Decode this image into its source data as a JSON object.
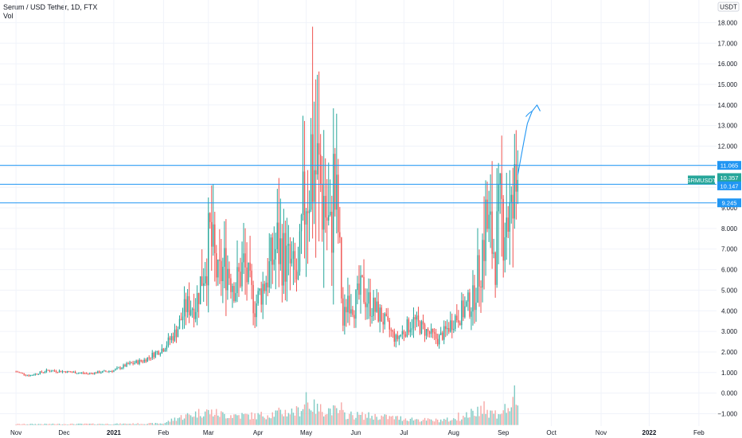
{
  "header": {
    "title": "Serum / USD Tether, 1D, FTX",
    "vol_label": "Vol"
  },
  "colors": {
    "up": "#26a69a",
    "down": "#ef5350",
    "up_vol": "#80cbc4",
    "down_vol": "#f7a9a7",
    "level_line": "#2196f3",
    "tag_blue": "#2196f3",
    "tag_green": "#26a69a"
  },
  "chart_data": {
    "type": "candlestick",
    "title": "Serum / USD Tether, 1D, FTX",
    "currency": "USDT",
    "ylim": [
      -1.6,
      19.1
    ],
    "y_ticks": [
      "18.000",
      "17.000",
      "16.000",
      "15.000",
      "14.000",
      "13.000",
      "12.000",
      "11.000",
      "10.000",
      "9.000",
      "8.000",
      "7.000",
      "6.000",
      "5.000",
      "4.000",
      "3.000",
      "2.000",
      "1.000",
      "0.000",
      "−1.000"
    ],
    "y_tick_values": [
      18,
      17,
      16,
      15,
      14,
      13,
      12,
      11,
      10,
      9,
      8,
      7,
      6,
      5,
      4,
      3,
      2,
      1,
      0,
      -1
    ],
    "x_ticks": [
      "Nov",
      "Dec",
      "2021",
      "Feb",
      "Mar",
      "Apr",
      "May",
      "Jun",
      "Jul",
      "Aug",
      "Sep",
      "Oct",
      "Nov",
      "2022",
      "Feb"
    ],
    "x_tick_days": [
      0,
      30,
      61,
      92,
      120,
      151,
      181,
      212,
      242,
      273,
      304,
      334,
      365,
      395,
      426
    ],
    "x_start_day": -10,
    "x_end_day": 437,
    "anchors": [
      [
        0,
        1.05
      ],
      [
        8,
        0.85
      ],
      [
        20,
        1.1
      ],
      [
        30,
        1.05
      ],
      [
        45,
        0.95
      ],
      [
        61,
        1.1
      ],
      [
        70,
        1.4
      ],
      [
        80,
        1.6
      ],
      [
        92,
        2.2
      ],
      [
        100,
        3.0
      ],
      [
        106,
        4.2
      ],
      [
        112,
        4.3
      ],
      [
        118,
        6.4
      ],
      [
        121,
        7.5
      ],
      [
        126,
        5.5
      ],
      [
        131,
        6.3
      ],
      [
        137,
        5.2
      ],
      [
        142,
        6.2
      ],
      [
        149,
        4.2
      ],
      [
        153,
        5.0
      ],
      [
        158,
        6.0
      ],
      [
        163,
        7.2
      ],
      [
        168,
        6.5
      ],
      [
        172,
        6.0
      ],
      [
        176,
        5.4
      ],
      [
        178,
        7.5
      ],
      [
        181,
        10.5
      ],
      [
        184,
        11.5
      ],
      [
        187,
        10.8
      ],
      [
        192,
        9.5
      ],
      [
        196,
        7.5
      ],
      [
        198,
        10.0
      ],
      [
        201,
        8.0
      ],
      [
        204,
        3.3
      ],
      [
        207,
        4.8
      ],
      [
        211,
        4.3
      ],
      [
        216,
        5.0
      ],
      [
        221,
        4.3
      ],
      [
        227,
        3.8
      ],
      [
        232,
        3.2
      ],
      [
        237,
        2.6
      ],
      [
        244,
        3.2
      ],
      [
        248,
        3.5
      ],
      [
        256,
        3.0
      ],
      [
        263,
        2.6
      ],
      [
        268,
        3.0
      ],
      [
        273,
        3.6
      ],
      [
        279,
        4.0
      ],
      [
        285,
        4.5
      ],
      [
        289,
        6.0
      ],
      [
        293,
        8.3
      ],
      [
        296,
        7.5
      ],
      [
        299,
        6.9
      ],
      [
        302,
        8.5
      ],
      [
        306,
        9.0
      ],
      [
        309,
        8.2
      ],
      [
        311,
        9.3
      ],
      [
        313,
        10.4
      ]
    ],
    "volume_profile": [
      [
        0,
        0.08
      ],
      [
        61,
        0.1
      ],
      [
        92,
        0.14
      ],
      [
        100,
        0.6
      ],
      [
        118,
        1.2
      ],
      [
        130,
        0.9
      ],
      [
        150,
        0.8
      ],
      [
        165,
        1.1
      ],
      [
        176,
        1.2
      ],
      [
        181,
        2.0
      ],
      [
        188,
        1.4
      ],
      [
        198,
        1.3
      ],
      [
        205,
        0.9
      ],
      [
        220,
        0.8
      ],
      [
        240,
        0.6
      ],
      [
        260,
        0.4
      ],
      [
        275,
        0.5
      ],
      [
        289,
        1.3
      ],
      [
        300,
        1.0
      ],
      [
        311,
        1.8
      ],
      [
        313,
        1.5
      ]
    ],
    "volume_spikes": [
      [
        181,
        2.9
      ],
      [
        203,
        2.0
      ],
      [
        276,
        1.1
      ],
      [
        290,
        1.7
      ],
      [
        292,
        2.1
      ],
      [
        311,
        3.5
      ],
      [
        312,
        1.8
      ]
    ],
    "levels": [
      11.065,
      10.147,
      9.245
    ],
    "price_tags": [
      {
        "label": "11.065",
        "value": 11.065,
        "color": "blue"
      },
      {
        "label": "SRMUSDT",
        "value": 10.357,
        "color": "green",
        "name": true
      },
      {
        "label": "10.357",
        "value": 10.357,
        "color": "green"
      },
      {
        "label": "10.147",
        "value": 10.147,
        "color": "blue"
      },
      {
        "label": "9.245",
        "value": 9.245,
        "color": "blue"
      }
    ],
    "projection_arrow": [
      [
        313,
        10.6
      ],
      [
        317,
        12.3
      ],
      [
        319,
        13.1
      ],
      [
        322,
        13.7
      ],
      [
        325,
        14.0
      ],
      [
        327,
        13.7
      ]
    ],
    "grid": true
  }
}
